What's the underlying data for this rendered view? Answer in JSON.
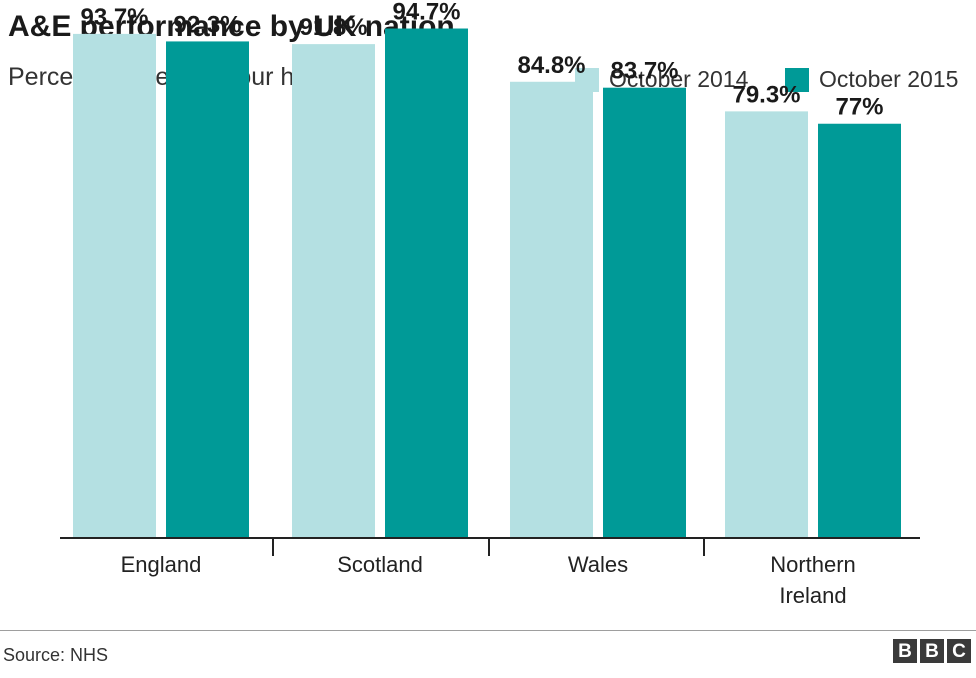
{
  "chart_data": {
    "type": "bar",
    "title": "A&E performance by UK nation",
    "subtitle": "Percentage seen in four hours",
    "categories": [
      [
        "England"
      ],
      [
        "Scotland"
      ],
      [
        "Wales"
      ],
      [
        "Northern",
        "Ireland"
      ]
    ],
    "series": [
      {
        "name": "October 2014",
        "values": [
          93.7,
          91.8,
          84.8,
          79.3
        ],
        "labels": [
          "93.7%",
          "91.8%",
          "84.8%",
          "79.3%"
        ],
        "color": "#b4e0e2"
      },
      {
        "name": "October 2015",
        "values": [
          92.3,
          94.7,
          83.7,
          77.0
        ],
        "labels": [
          "92.3%",
          "94.7%",
          "83.7%",
          "77%"
        ],
        "color": "#009a97"
      }
    ],
    "ylim": [
      0,
      100
    ],
    "grid": false,
    "legend_position": "top-right"
  },
  "footer": {
    "source": "Source: NHS",
    "logo_letters": [
      "B",
      "B",
      "C"
    ]
  }
}
